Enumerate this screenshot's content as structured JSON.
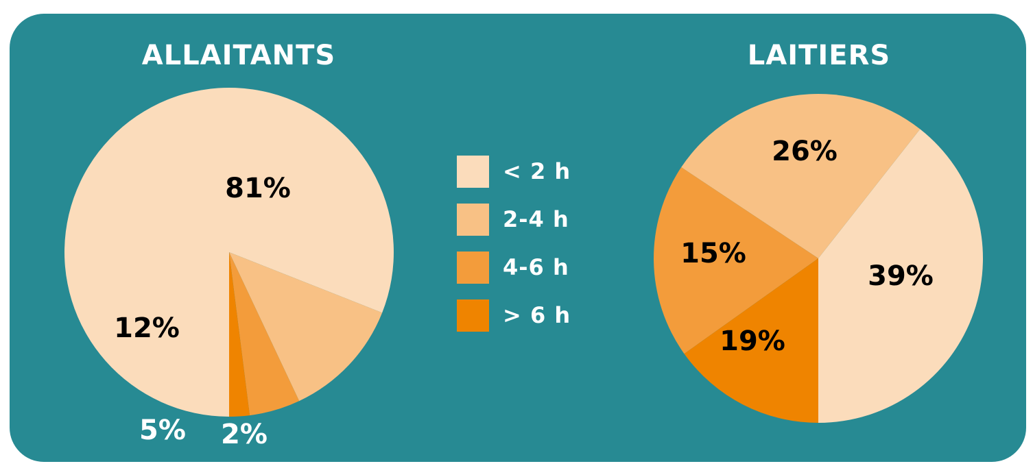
{
  "colors": {
    "background": "#278a93",
    "less_2h": "#fbdcbb",
    "h2_4": "#f8c185",
    "h4_6": "#f39c3b",
    "more_6h": "#ef8400",
    "label_dark": "#000000",
    "label_light": "#ffffff"
  },
  "legend": [
    {
      "label": "< 2 h",
      "color": "#fbdcbb"
    },
    {
      "label": "2-4 h",
      "color": "#f8c185"
    },
    {
      "label": "4-6 h",
      "color": "#f39c3b"
    },
    {
      "label": "> 6 h",
      "color": "#ef8400"
    }
  ],
  "chart_data": [
    {
      "type": "pie",
      "title": "ALLAITANTS",
      "slices": [
        {
          "category": "< 2 h",
          "value": 81,
          "label": "81%",
          "color": "#fbdcbb"
        },
        {
          "category": "2-4 h",
          "value": 12,
          "label": "12%",
          "color": "#f8c185"
        },
        {
          "category": "4-6 h",
          "value": 5,
          "label": "5%",
          "color": "#f39c3b"
        },
        {
          "category": "> 6 h",
          "value": 2,
          "label": "2%",
          "color": "#ef8400"
        }
      ]
    },
    {
      "type": "pie",
      "title": "LAITIERS",
      "slices": [
        {
          "category": "< 2 h",
          "value": 39,
          "label": "39%",
          "color": "#fbdcbb"
        },
        {
          "category": "2-4 h",
          "value": 26,
          "label": "26%",
          "color": "#f8c185"
        },
        {
          "category": "4-6 h",
          "value": 19,
          "label": "19%",
          "color": "#f39c3b"
        },
        {
          "category": "> 6 h",
          "value": 15,
          "label": "15%",
          "color": "#ef8400"
        }
      ]
    }
  ]
}
